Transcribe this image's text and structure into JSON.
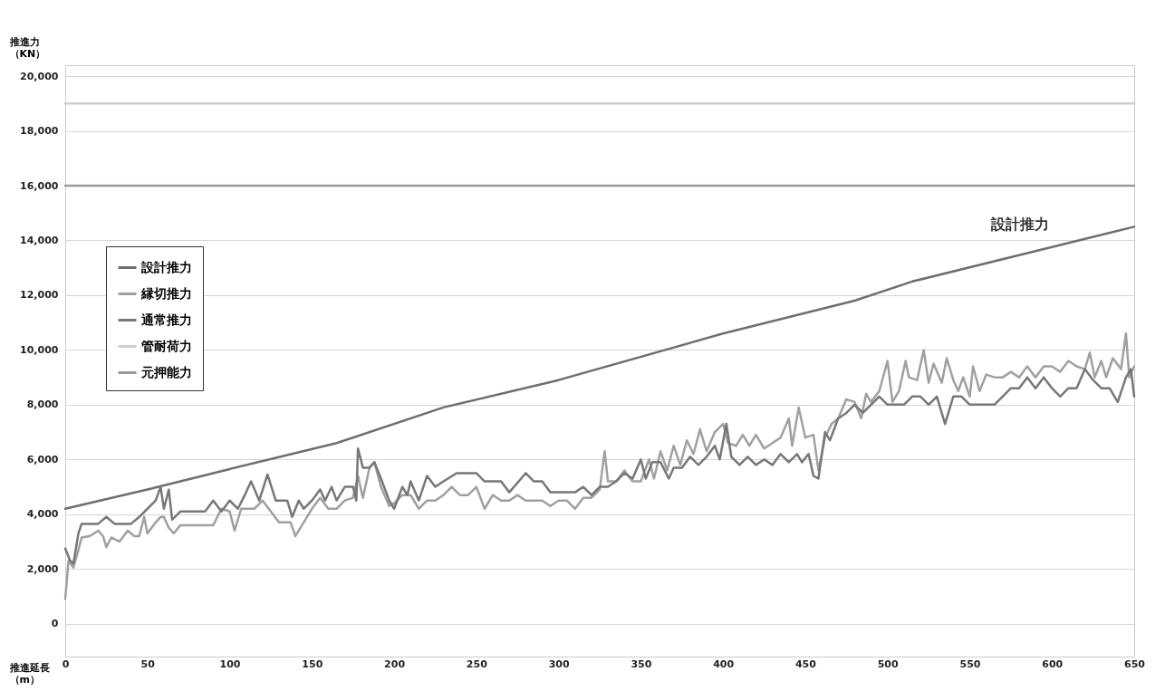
{
  "chart_data": {
    "type": "line",
    "xlabel": "推進延長（m）",
    "ylabel": "推進力（KN）",
    "xlim": [
      0,
      650
    ],
    "ylim": [
      -1200,
      20400
    ],
    "xticks": [
      0,
      50,
      100,
      150,
      200,
      250,
      300,
      350,
      400,
      450,
      500,
      550,
      600,
      650
    ],
    "yticks": [
      0,
      {
        "value": 2000,
        "label": "2,000"
      },
      {
        "value": 4000,
        "label": "4,000"
      },
      {
        "value": 6000,
        "label": "6,000"
      },
      {
        "value": 8000,
        "label": "8,000"
      },
      {
        "value": 10000,
        "label": "10,000"
      },
      {
        "value": 12000,
        "label": "12,000"
      },
      {
        "value": 14000,
        "label": "14,000"
      },
      {
        "value": 16000,
        "label": "16,000"
      },
      {
        "value": 18000,
        "label": "18,000"
      },
      {
        "value": 20000,
        "label": "20,000"
      }
    ],
    "grid": "y",
    "legend": "left",
    "annotations": [
      "設計推力"
    ],
    "series": [
      {
        "name": "設計推力",
        "color": "#6e6e6e",
        "x": [
          0,
          50,
          100,
          165,
          230,
          300,
          400,
          480,
          515,
          650
        ],
        "values": [
          4200,
          4900,
          5650,
          6600,
          7900,
          8900,
          10600,
          11800,
          12500,
          14500
        ]
      },
      {
        "name": "縁切推力",
        "color": "#a0a0a0",
        "x": [
          0,
          2,
          5,
          8,
          10,
          15,
          20,
          23,
          25,
          28,
          33,
          38,
          42,
          45,
          48,
          50,
          55,
          58,
          60,
          63,
          66,
          70,
          80,
          90,
          95,
          100,
          103,
          107,
          115,
          120,
          125,
          130,
          137,
          140,
          145,
          150,
          155,
          160,
          165,
          170,
          175,
          178,
          181,
          185,
          188,
          192,
          197,
          200,
          205,
          210,
          215,
          220,
          225,
          230,
          235,
          240,
          245,
          250,
          255,
          260,
          265,
          270,
          275,
          280,
          290,
          295,
          300,
          305,
          310,
          315,
          320,
          325,
          328,
          330,
          335,
          340,
          345,
          350,
          355,
          358,
          362,
          366,
          370,
          374,
          378,
          382,
          386,
          390,
          395,
          400,
          403,
          408,
          412,
          416,
          420,
          425,
          430,
          435,
          440,
          442,
          446,
          450,
          455,
          458,
          462,
          466,
          470,
          475,
          480,
          484,
          487,
          490,
          495,
          500,
          503,
          507,
          511,
          513,
          518,
          522,
          525,
          528,
          533,
          536,
          540,
          543,
          546,
          550,
          552,
          556,
          560,
          565,
          570,
          575,
          580,
          585,
          590,
          595,
          600,
          605,
          610,
          615,
          620,
          623,
          626,
          630,
          633,
          637,
          642,
          645,
          647,
          650
        ],
        "values": [
          900,
          2300,
          2050,
          2700,
          3150,
          3200,
          3400,
          3200,
          2800,
          3150,
          3000,
          3400,
          3200,
          3200,
          3900,
          3300,
          3700,
          3900,
          3900,
          3500,
          3300,
          3600,
          3600,
          3600,
          4200,
          4100,
          3400,
          4200,
          4200,
          4500,
          4100,
          3700,
          3700,
          3200,
          3700,
          4200,
          4600,
          4200,
          4200,
          4500,
          4600,
          5400,
          4600,
          5700,
          5900,
          5000,
          4300,
          4400,
          4700,
          4700,
          4200,
          4500,
          4500,
          4700,
          5000,
          4700,
          4700,
          5000,
          4200,
          4700,
          4500,
          4500,
          4700,
          4500,
          4500,
          4300,
          4500,
          4500,
          4200,
          4600,
          4600,
          4900,
          6300,
          5200,
          5200,
          5600,
          5200,
          5200,
          6000,
          5300,
          6300,
          5600,
          6500,
          5800,
          6700,
          6200,
          7100,
          6300,
          7000,
          7300,
          6600,
          6500,
          6900,
          6500,
          6900,
          6400,
          6600,
          6800,
          7500,
          6500,
          7900,
          6800,
          6900,
          5600,
          6800,
          7300,
          7500,
          8200,
          8100,
          7500,
          8400,
          8100,
          8500,
          9600,
          8100,
          8500,
          9600,
          9000,
          8900,
          10000,
          8800,
          9500,
          8800,
          9700,
          8900,
          8500,
          9000,
          8300,
          9400,
          8500,
          9100,
          9000,
          9000,
          9200,
          9000,
          9400,
          9000,
          9400,
          9400,
          9200,
          9600,
          9400,
          9300,
          9900,
          9000,
          9600,
          9000,
          9700,
          9300,
          10600,
          9000,
          9400
        ]
      },
      {
        "name": "通常推力",
        "color": "#777777",
        "x": [
          0,
          3,
          5,
          8,
          10,
          20,
          25,
          30,
          40,
          45,
          50,
          55,
          58,
          60,
          63,
          65,
          70,
          85,
          90,
          95,
          100,
          105,
          110,
          113,
          118,
          123,
          128,
          135,
          138,
          142,
          145,
          150,
          155,
          158,
          162,
          165,
          170,
          175,
          177,
          178,
          181,
          185,
          188,
          192,
          197,
          200,
          205,
          208,
          210,
          215,
          220,
          225,
          230,
          238,
          250,
          255,
          265,
          270,
          280,
          285,
          290,
          295,
          310,
          315,
          320,
          325,
          330,
          335,
          340,
          345,
          350,
          353,
          357,
          362,
          367,
          370,
          375,
          380,
          385,
          390,
          395,
          398,
          402,
          405,
          410,
          415,
          420,
          425,
          430,
          435,
          440,
          445,
          448,
          452,
          455,
          458,
          462,
          465,
          470,
          475,
          480,
          485,
          490,
          495,
          500,
          505,
          510,
          515,
          520,
          525,
          530,
          535,
          540,
          545,
          550,
          555,
          560,
          565,
          570,
          575,
          580,
          585,
          590,
          595,
          600,
          605,
          610,
          615,
          620,
          625,
          630,
          635,
          640,
          645,
          648,
          650
        ],
        "values": [
          2750,
          2300,
          2200,
          3300,
          3650,
          3650,
          3900,
          3650,
          3650,
          3900,
          4200,
          4500,
          5000,
          4200,
          4900,
          3800,
          4100,
          4100,
          4500,
          4100,
          4500,
          4200,
          4800,
          5200,
          4500,
          5450,
          4500,
          4500,
          3900,
          4500,
          4200,
          4500,
          4900,
          4500,
          5000,
          4500,
          5000,
          5000,
          4500,
          6400,
          5700,
          5700,
          5900,
          5300,
          4500,
          4200,
          5000,
          4700,
          5200,
          4500,
          5400,
          5000,
          5200,
          5500,
          5500,
          5200,
          5200,
          4800,
          5500,
          5200,
          5200,
          4800,
          4800,
          5000,
          4700,
          5000,
          5000,
          5200,
          5500,
          5300,
          6000,
          5300,
          5900,
          5900,
          5300,
          5700,
          5700,
          6100,
          5800,
          6100,
          6500,
          6000,
          7300,
          6100,
          5800,
          6100,
          5800,
          6000,
          5800,
          6200,
          5900,
          6200,
          5900,
          6200,
          5400,
          5300,
          7000,
          6700,
          7500,
          7700,
          8000,
          7700,
          8000,
          8300,
          8000,
          8000,
          8000,
          8300,
          8300,
          8000,
          8300,
          7300,
          8300,
          8300,
          8000,
          8000,
          8000,
          8000,
          8300,
          8600,
          8600,
          9000,
          8600,
          9000,
          8600,
          8300,
          8600,
          8600,
          9300,
          8900,
          8600,
          8600,
          8100,
          9000,
          9300,
          8300
        ]
      },
      {
        "name": "管耐荷力",
        "color": "#cfcfcf",
        "x": [
          0,
          650
        ],
        "values": [
          19000,
          19000
        ]
      },
      {
        "name": "元押能力",
        "color": "#9a9a9a",
        "x": [
          0,
          650
        ],
        "values": [
          16000,
          16000
        ]
      }
    ]
  }
}
